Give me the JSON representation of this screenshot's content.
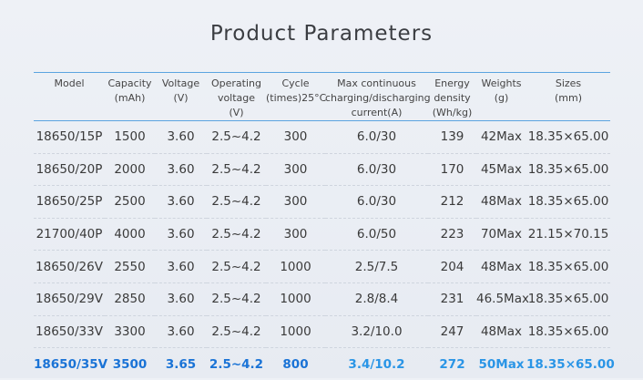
{
  "title": "Product Parameters",
  "headers": [
    [
      "Model"
    ],
    [
      "Capacity",
      "(mAh)"
    ],
    [
      "Voltage",
      "(V)"
    ],
    [
      "Operating",
      "voltage",
      "(V)"
    ],
    [
      "Cycle",
      "(times)25°C"
    ],
    [
      "Max continuous",
      "charging/discharging",
      "current(A)"
    ],
    [
      "Energy",
      "density",
      "(Wh/kg)"
    ],
    [
      "Weights",
      "(g)"
    ],
    [
      "Sizes",
      "(mm)"
    ]
  ],
  "rows": [
    [
      "18650/15P",
      "1500",
      "3.60",
      "2.5~4.2",
      "300",
      "6.0/30",
      "139",
      "42Max",
      "18.35×65.00"
    ],
    [
      "18650/20P",
      "2000",
      "3.60",
      "2.5~4.2",
      "300",
      "6.0/30",
      "170",
      "45Max",
      "18.35×65.00"
    ],
    [
      "18650/25P",
      "2500",
      "3.60",
      "2.5~4.2",
      "300",
      "6.0/30",
      "212",
      "48Max",
      "18.35×65.00"
    ],
    [
      "21700/40P",
      "4000",
      "3.60",
      "2.5~4.2",
      "300",
      "6.0/50",
      "223",
      "70Max",
      "21.15×70.15"
    ],
    [
      "18650/26V",
      "2550",
      "3.60",
      "2.5~4.2",
      "1000",
      "2.5/7.5",
      "204",
      "48Max",
      "18.35×65.00"
    ],
    [
      "18650/29V",
      "2850",
      "3.60",
      "2.5~4.2",
      "1000",
      "2.8/8.4",
      "231",
      "46.5Max",
      "18.35×65.00"
    ],
    [
      "18650/33V",
      "3300",
      "3.60",
      "2.5~4.2",
      "1000",
      "3.2/10.0",
      "247",
      "48Max",
      "18.35×65.00"
    ],
    [
      "18650/35V",
      "3500",
      "3.65",
      "2.5~4.2",
      "800",
      "3.4/10.2",
      "272",
      "50Max",
      "18.35×65.00"
    ]
  ],
  "highlight_row": 7,
  "colors": {
    "accent": "#1a73d6",
    "line": "#5ba4e0"
  }
}
